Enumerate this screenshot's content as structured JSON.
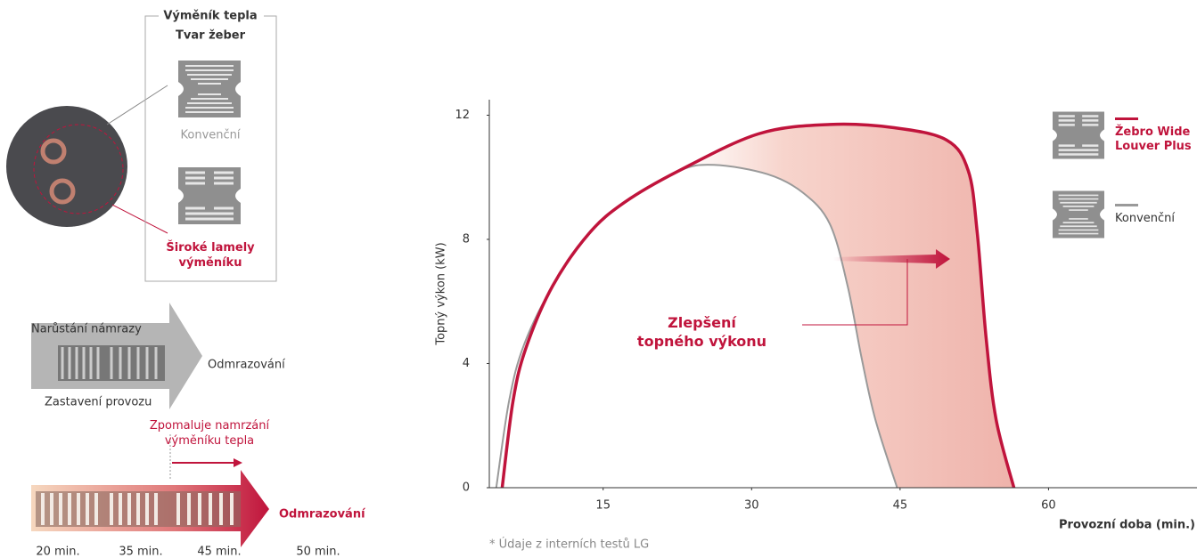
{
  "left_panel": {
    "fin_box": {
      "title": "Výměník tepla",
      "subtitle": "Tvar žeber",
      "conventional": "Konvenční",
      "wide": "Široké lamely výměníku"
    },
    "frost": {
      "top_label": "Narůstání námrazy",
      "bottom_label": "Zastavení provozu",
      "result": "Odmrazování"
    },
    "slow_frost": {
      "note": "Zpomaluje namrzání výměníku tepla",
      "result": "Odmrazování",
      "times": [
        "20 min.",
        "35 min.",
        "45 min.",
        "50 min."
      ]
    }
  },
  "chart_data": {
    "type": "line",
    "x_label": "Provozní doba (min.)",
    "y_label": "Topný výkon (kW)",
    "annotation": "Zlepšení topného výkonu",
    "footnote": "* Údaje z interních testů LG",
    "xlim": [
      3.5,
      75
    ],
    "ylim": [
      0,
      12.5
    ],
    "xticks": [
      15,
      30,
      45,
      60
    ],
    "yticks": [
      0,
      4,
      8,
      12
    ],
    "legend_position": "upper right",
    "series": [
      {
        "name": "Žebro Wide Louver Plus",
        "color": "#c0143c",
        "x": [
          4.8,
          5.9,
          7.2,
          9.9,
          13.6,
          17.2,
          22.6,
          30.7,
          37.9,
          44.3,
          49.7,
          51.9,
          52.8,
          53.7,
          54.7,
          56.5
        ],
        "values": [
          0,
          2.8,
          4.5,
          6.5,
          8.2,
          9.2,
          10.2,
          11.4,
          11.7,
          11.6,
          11.2,
          10.2,
          8.2,
          4.8,
          2.2,
          0
        ]
      },
      {
        "name": "Konvenční",
        "color": "#9a9a9a",
        "x": [
          4.2,
          5.5,
          7.0,
          9.9,
          13.6,
          17.2,
          22.6,
          26.2,
          31.6,
          35.2,
          37.9,
          39.7,
          41.1,
          42.5,
          44.7
        ],
        "values": [
          0,
          2.8,
          4.6,
          6.5,
          8.2,
          9.2,
          10.2,
          10.4,
          10.1,
          9.5,
          8.5,
          6.5,
          4.2,
          2.2,
          0
        ]
      }
    ]
  }
}
